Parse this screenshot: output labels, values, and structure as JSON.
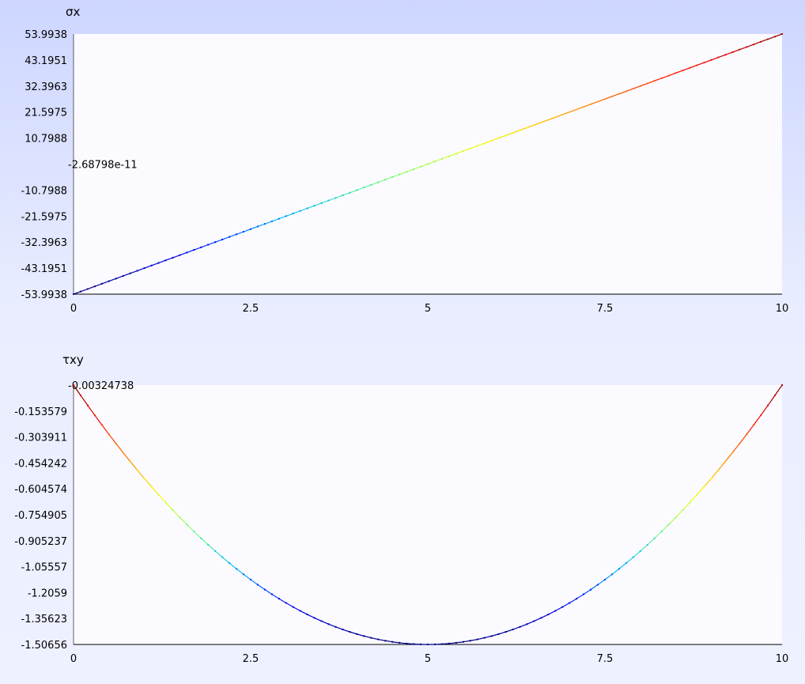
{
  "colors": {
    "plot_bg": "#fbfbff",
    "axis": "#000000",
    "colormap": [
      "#00007f",
      "#0000ff",
      "#00bfff",
      "#7fff7f",
      "#ffff00",
      "#ff7f00",
      "#ff0000",
      "#7f0000"
    ]
  },
  "chart_data": [
    {
      "type": "line",
      "title": "σx",
      "xlim": [
        0,
        10
      ],
      "ylim": [
        -53.9938,
        53.9938
      ],
      "xticks": [
        "0",
        "2.5",
        "5",
        "7.5",
        "10"
      ],
      "yticks": [
        "53.9938",
        "43.1951",
        "32.3963",
        "21.5975",
        "10.7988",
        "-2.68798e-11",
        "-10.7988",
        "-21.5975",
        "-32.3963",
        "-43.1951",
        "-53.9938"
      ],
      "function": "linear",
      "params": {
        "slope": 10.79876,
        "intercept": -53.9938
      },
      "n_points": 101,
      "color_scale": "jet",
      "grid": false
    },
    {
      "type": "line",
      "title": "τxy",
      "xlim": [
        0,
        10
      ],
      "ylim": [
        -1.50656,
        -0.00324738
      ],
      "xticks": [
        "0",
        "2.5",
        "5",
        "7.5",
        "10"
      ],
      "yticks": [
        "-0.00324738",
        "-0.153579",
        "-0.303911",
        "-0.454242",
        "-0.604574",
        "-0.754905",
        "-0.905237",
        "-1.05557",
        "-1.2059",
        "-1.35623",
        "-1.50656"
      ],
      "function": "parabola",
      "params": {
        "vertex_x": 5,
        "min": -1.50656,
        "edge": -0.00324738
      },
      "n_points": 101,
      "color_scale": "jet",
      "grid": false
    }
  ]
}
